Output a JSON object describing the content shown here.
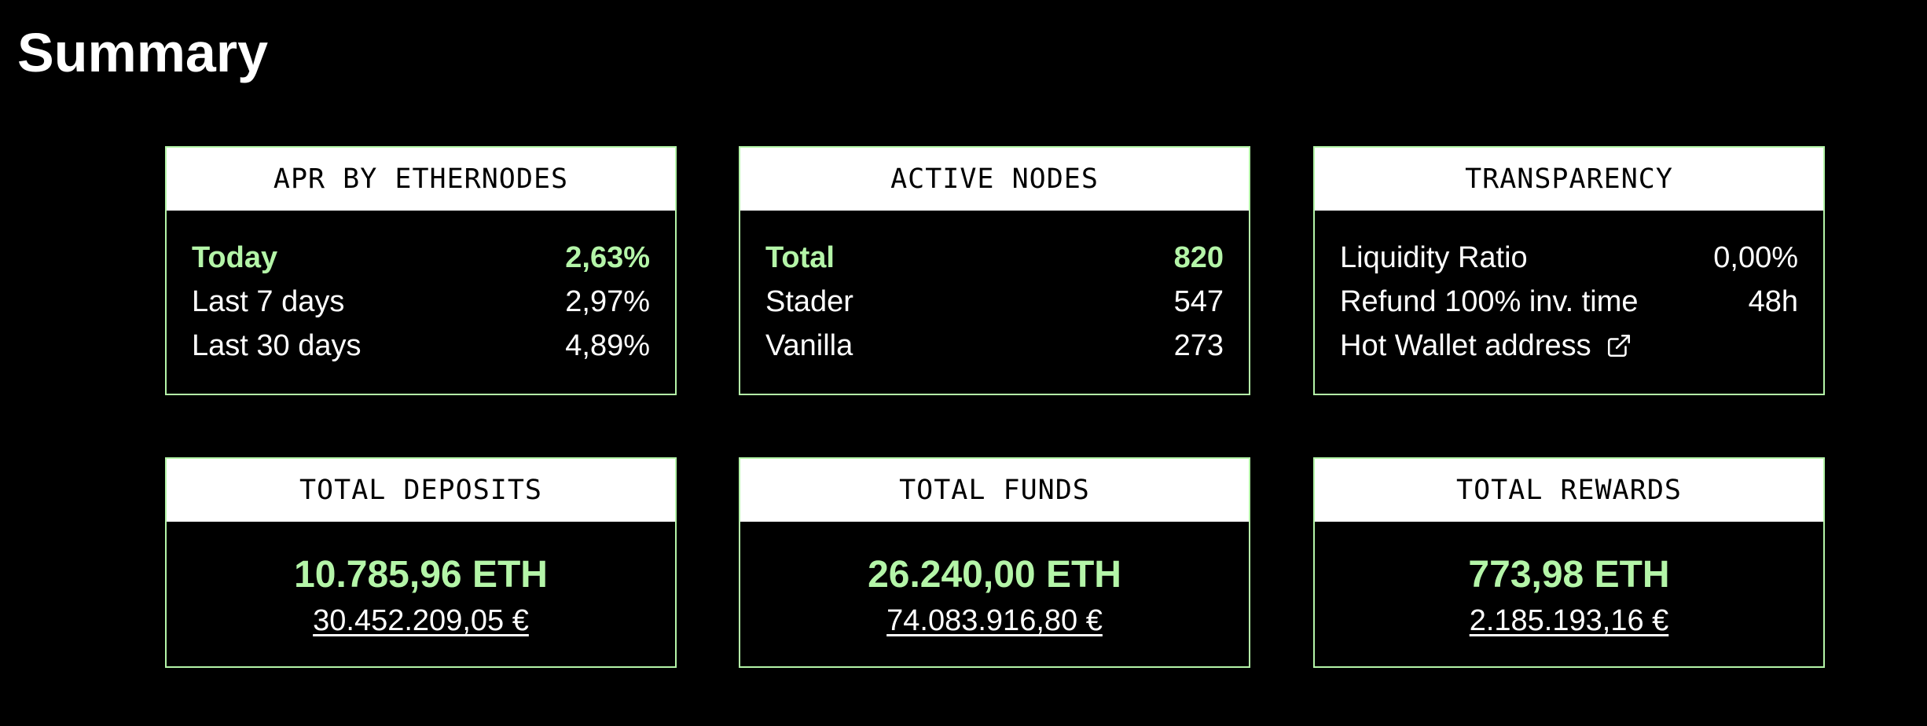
{
  "page": {
    "title": "Summary"
  },
  "colors": {
    "accent": "#b4f5a8",
    "background": "#000000",
    "header_bg": "#ffffff"
  },
  "apr": {
    "header": "APR BY ETHERNODES",
    "rows": [
      {
        "label": "Today",
        "value": "2,63%"
      },
      {
        "label": "Last 7 days",
        "value": "2,97%"
      },
      {
        "label": "Last 30 days",
        "value": "4,89%"
      }
    ]
  },
  "active_nodes": {
    "header": "ACTIVE NODES",
    "rows": [
      {
        "label": "Total",
        "value": "820"
      },
      {
        "label": "Stader",
        "value": "547"
      },
      {
        "label": "Vanilla",
        "value": "273"
      }
    ]
  },
  "transparency": {
    "header": "TRANSPARENCY",
    "rows": [
      {
        "label": "Liquidity Ratio",
        "value": "0,00%"
      },
      {
        "label": "Refund 100% inv. time",
        "value": "48h"
      }
    ],
    "hot_wallet_label": "Hot Wallet address",
    "hot_wallet_icon": "external-link-icon"
  },
  "total_deposits": {
    "header": "TOTAL DEPOSITS",
    "eth": "10.785,96 ETH",
    "eur": "30.452.209,05 €"
  },
  "total_funds": {
    "header": "TOTAL FUNDS",
    "eth": "26.240,00 ETH",
    "eur": "74.083.916,80 €"
  },
  "total_rewards": {
    "header": "TOTAL REWARDS",
    "eth": "773,98 ETH",
    "eur": "2.185.193,16 €"
  }
}
